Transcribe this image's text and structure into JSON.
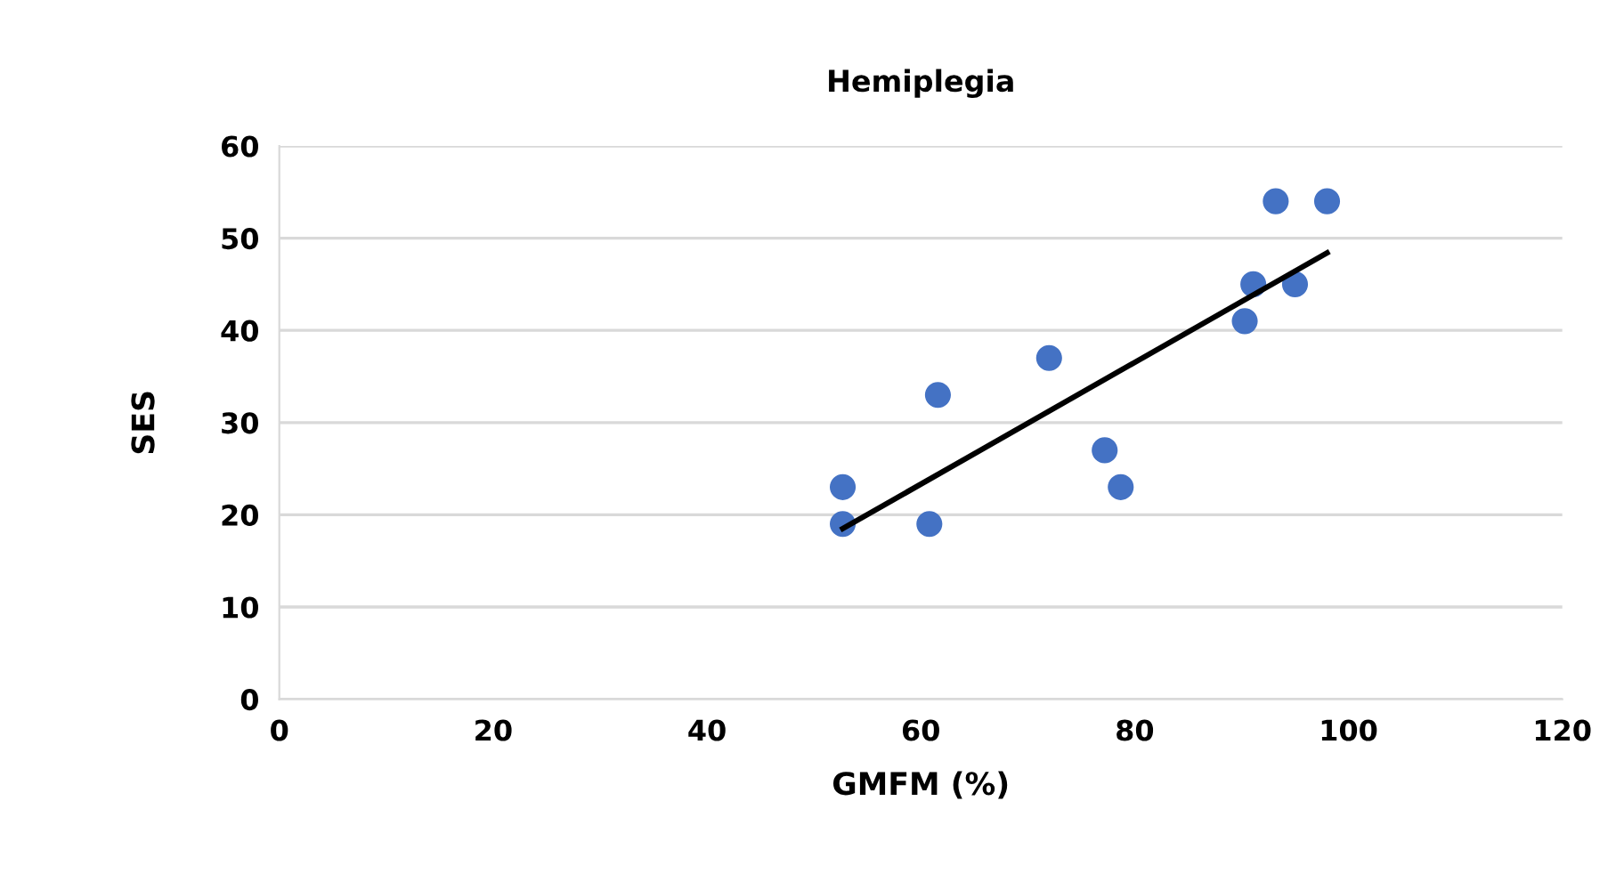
{
  "chart_data": {
    "type": "scatter",
    "title": "Hemiplegia",
    "xlabel": "GMFM (%)",
    "ylabel": "SES",
    "xlim": [
      0,
      120
    ],
    "xticks": [
      0,
      20,
      40,
      60,
      80,
      100,
      120
    ],
    "ylim": [
      0,
      60
    ],
    "yticks": [
      0,
      10,
      20,
      30,
      40,
      50,
      60
    ],
    "grid": "y",
    "series": [
      {
        "marker": "circle",
        "color": "#4472c4",
        "x": [
          52.7,
          52.7,
          60.8,
          61.6,
          72,
          77.2,
          78.7,
          90.3,
          91.1,
          93.2,
          95,
          98
        ],
        "values": [
          23,
          19,
          19,
          33,
          37,
          27,
          23,
          41,
          45,
          54,
          45,
          54
        ]
      },
      {
        "type": "line",
        "color": "#000000",
        "x": [
          52.7,
          98
        ],
        "values": [
          18.5,
          48.4
        ]
      }
    ]
  }
}
